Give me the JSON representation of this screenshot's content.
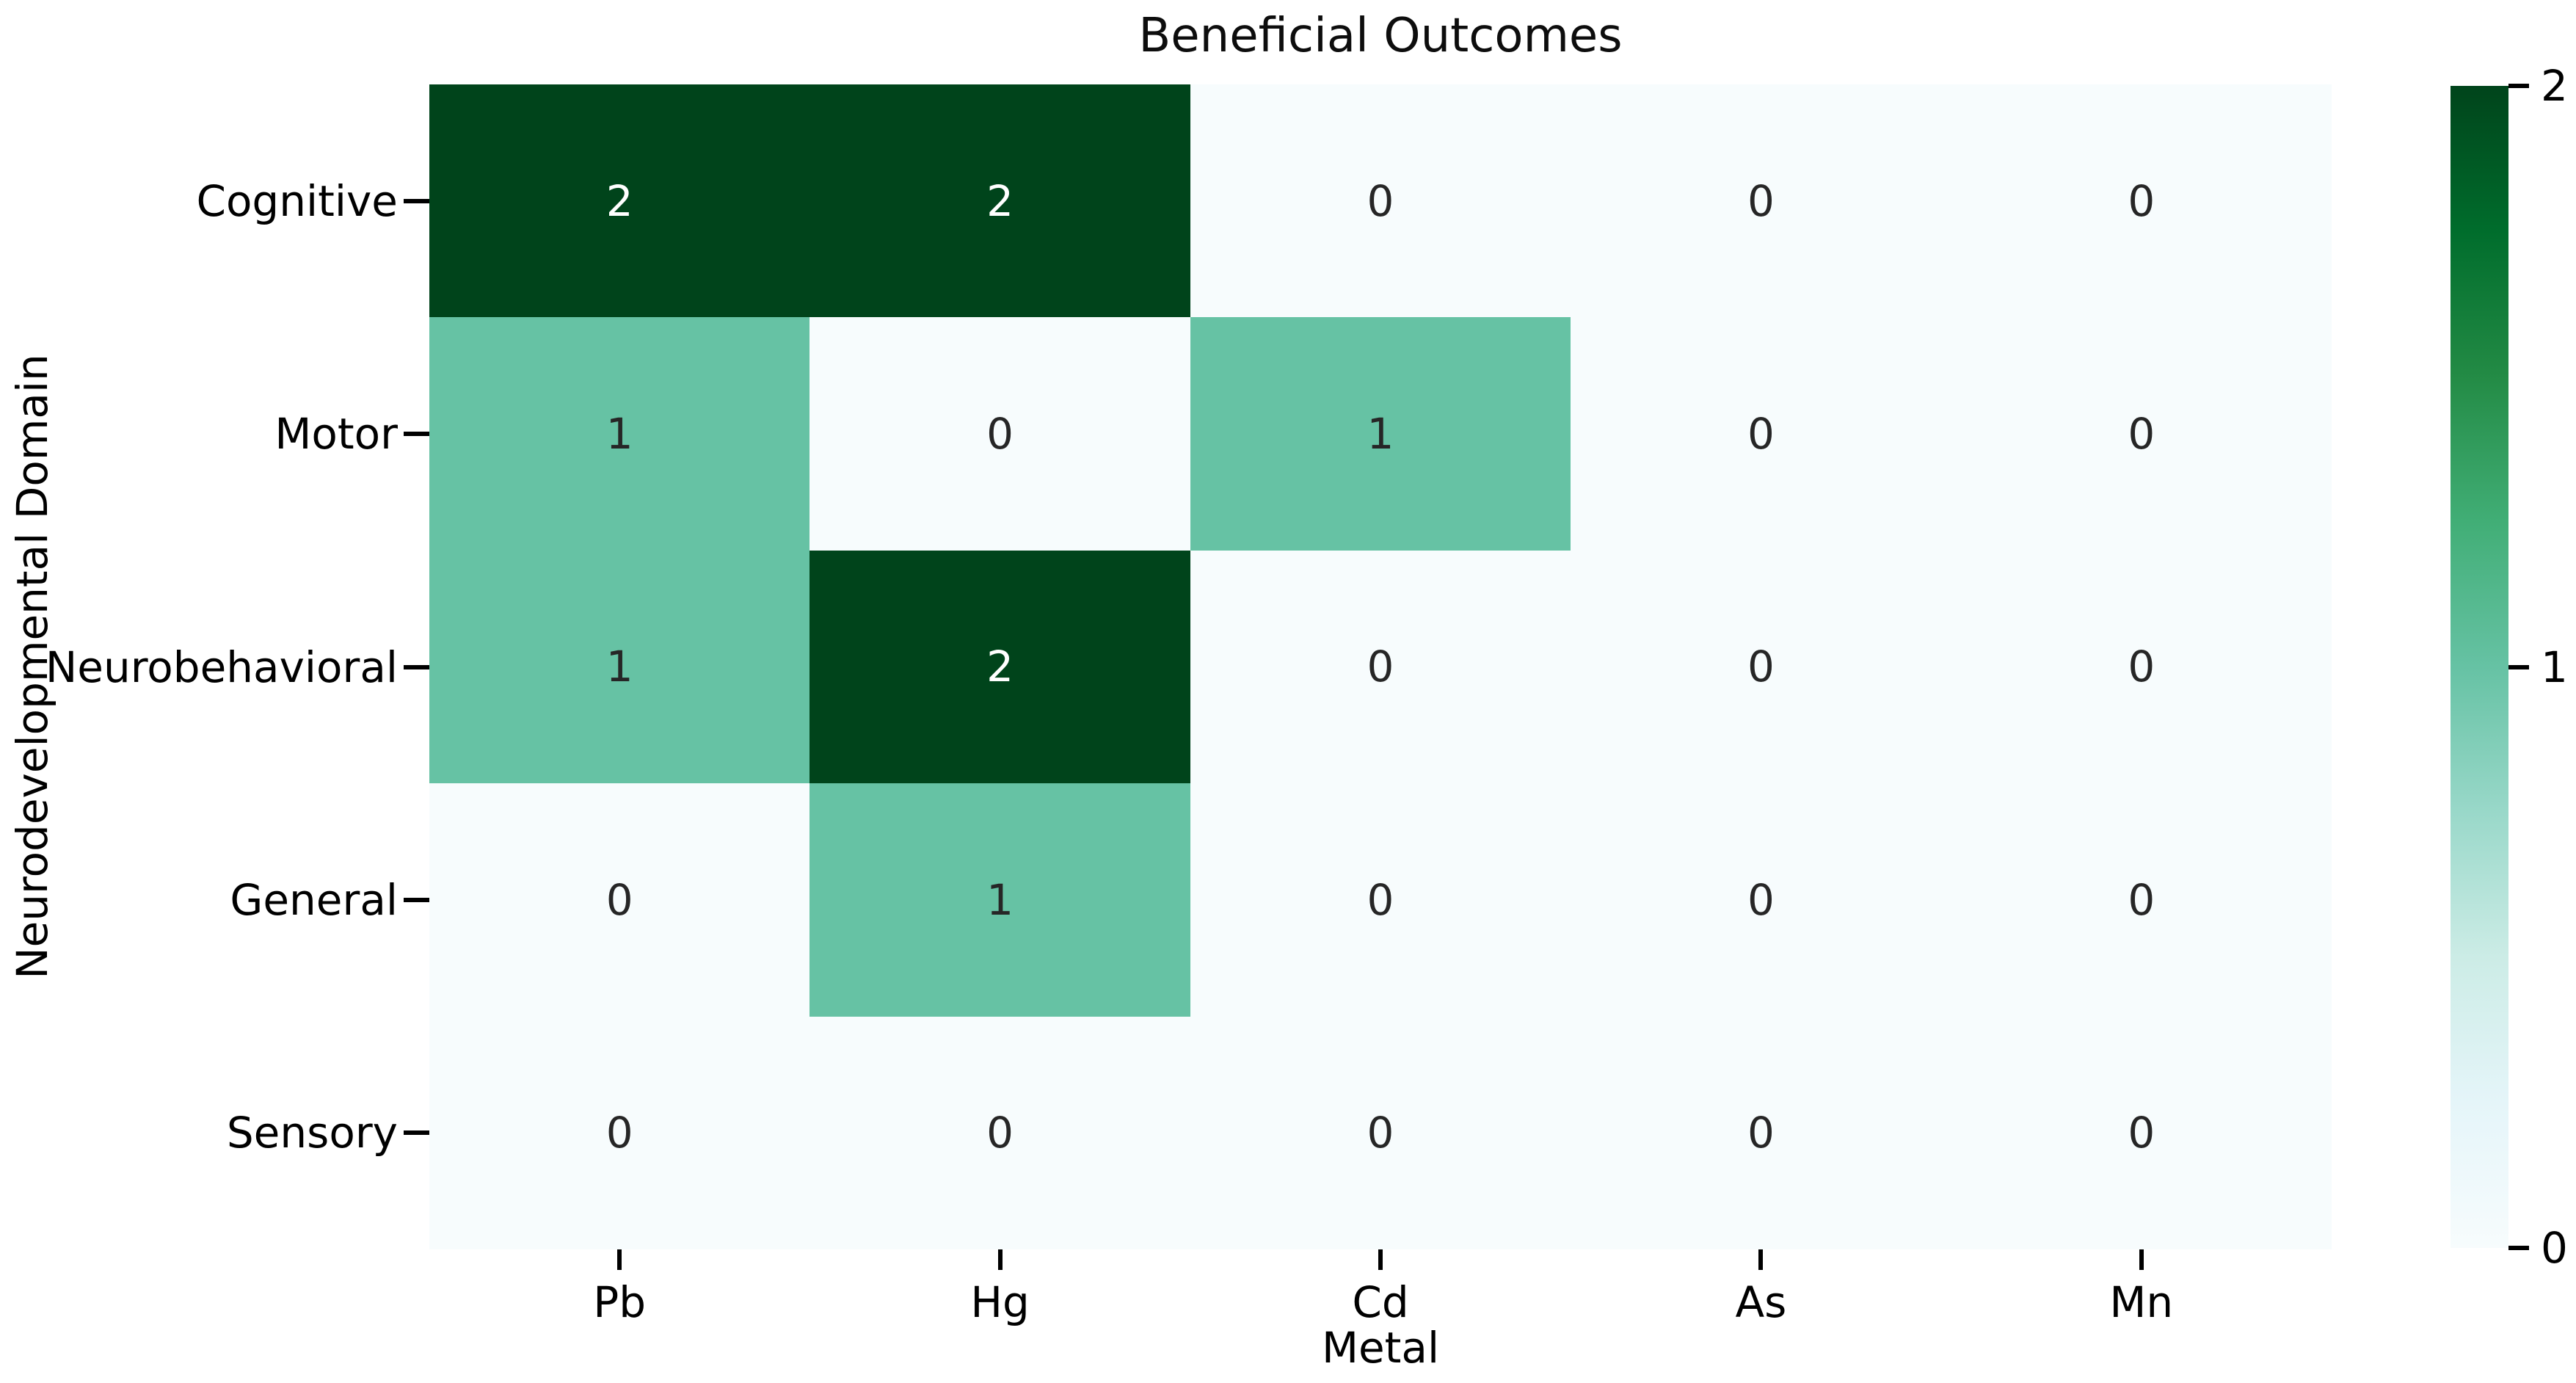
{
  "chart_data": {
    "type": "heatmap",
    "title": "Beneficial Outcomes",
    "xlabel": "Metal",
    "ylabel": "Neurodevelopmental Domain",
    "columns": [
      "Pb",
      "Hg",
      "Cd",
      "As",
      "Mn"
    ],
    "rows": [
      "Cognitive",
      "Motor",
      "Neurobehavioral",
      "General",
      "Sensory"
    ],
    "values": [
      [
        2,
        2,
        0,
        0,
        0
      ],
      [
        1,
        0,
        1,
        0,
        0
      ],
      [
        1,
        2,
        0,
        0,
        0
      ],
      [
        0,
        1,
        0,
        0,
        0
      ],
      [
        0,
        0,
        0,
        0,
        0
      ]
    ],
    "vmin": 0,
    "vmax": 2,
    "annotated": true,
    "legend_position": "right-colorbar",
    "grid": false,
    "cell_colors": {
      "0": "#f7fcfd",
      "1": "#66c2a4",
      "2": "#00441b"
    },
    "annot_text_colors": {
      "0": "#262626",
      "1": "#262626",
      "2": "#ffffff"
    },
    "colorbar": {
      "tick_labels": [
        "2",
        "1",
        "0"
      ],
      "tick_values": [
        2,
        1,
        0
      ],
      "gradient_stops_bottom_to_top": [
        "#f7fcfd",
        "#e5f5f9",
        "#ccece6",
        "#99d8c9",
        "#66c2a4",
        "#41ae76",
        "#238b45",
        "#006d2c",
        "#00441b"
      ]
    }
  }
}
